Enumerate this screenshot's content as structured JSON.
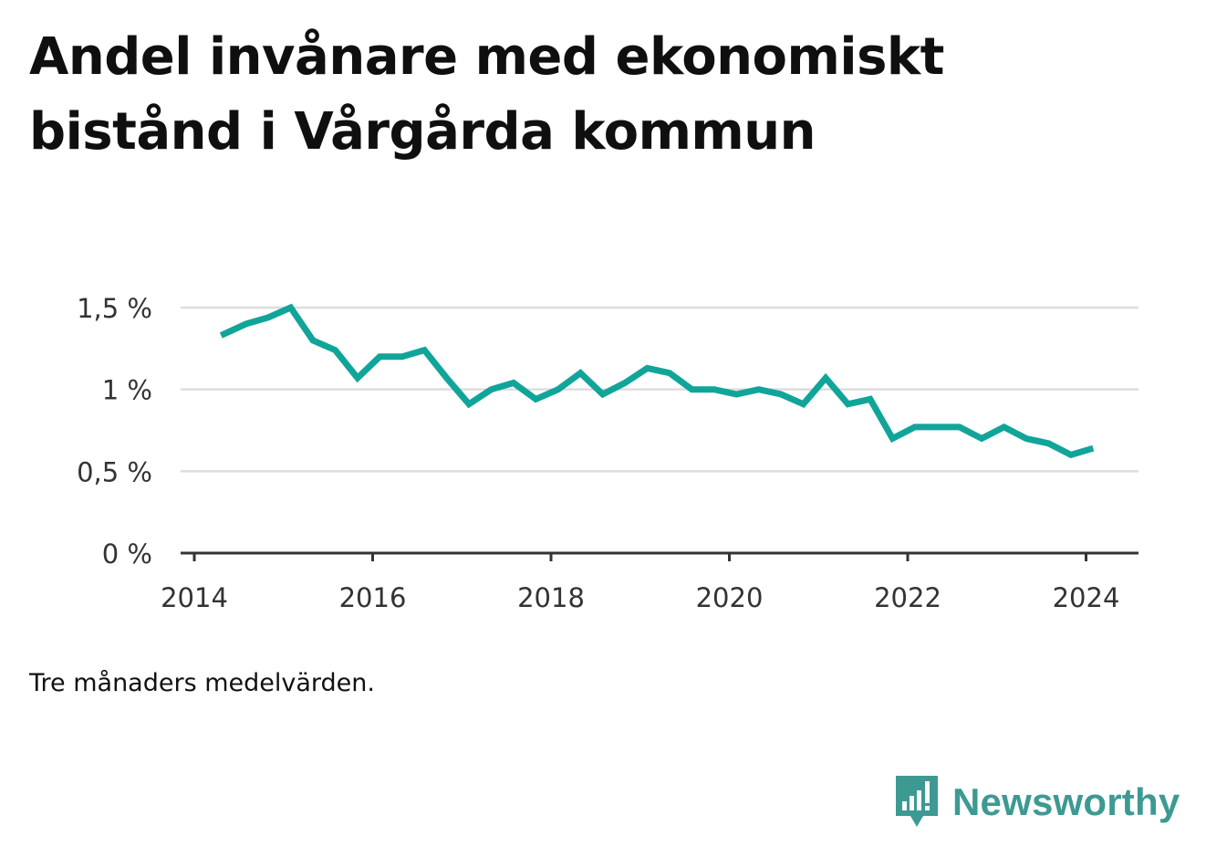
{
  "title": "Andel invånare med ekonomiskt bistånd i Vårgårda kommun",
  "note": "Tre månaders medelvärden.",
  "brand": {
    "name": "Newsworthy",
    "color": "#3d9a93",
    "icon": "newsworthy-logo-icon"
  },
  "colors": {
    "line": "#11a59a",
    "grid": "#dddddd",
    "axis": "#333333"
  },
  "chart_data": {
    "type": "line",
    "title": "Andel invånare med ekonomiskt bistånd i Vårgårda kommun",
    "xlabel": "",
    "ylabel": "",
    "x_range": [
      2014,
      2024.6
    ],
    "ylim": [
      0,
      1.5
    ],
    "y_ticks": [
      0,
      0.5,
      1,
      1.5
    ],
    "y_tick_labels": [
      "0 %",
      "0,5 %",
      "1 %",
      "1,5 %"
    ],
    "x_ticks": [
      2014,
      2016,
      2018,
      2020,
      2022,
      2024
    ],
    "x_tick_labels": [
      "2014",
      "2016",
      "2018",
      "2020",
      "2022",
      "2024"
    ],
    "grid": true,
    "legend": "none",
    "series": [
      {
        "x": [
          2014.3,
          2014.58,
          2014.83,
          2015.08,
          2015.33,
          2015.58,
          2015.83,
          2016.08,
          2016.33,
          2016.58,
          2016.83,
          2017.08,
          2017.33,
          2017.58,
          2017.83,
          2018.08,
          2018.33,
          2018.58,
          2018.83,
          2019.08,
          2019.33,
          2019.58,
          2019.83,
          2020.08,
          2020.33,
          2020.58,
          2020.83,
          2021.08,
          2021.33,
          2021.58,
          2021.83,
          2022.08,
          2022.33,
          2022.58,
          2022.83,
          2023.08,
          2023.33,
          2023.58,
          2023.83,
          2024.08
        ],
        "values": [
          1.33,
          1.4,
          1.44,
          1.5,
          1.3,
          1.24,
          1.07,
          1.2,
          1.2,
          1.24,
          1.07,
          0.91,
          1.0,
          1.04,
          0.94,
          1.0,
          1.1,
          0.97,
          1.04,
          1.13,
          1.1,
          1.0,
          1.0,
          0.97,
          1.0,
          0.97,
          0.91,
          1.07,
          0.91,
          0.94,
          0.7,
          0.77,
          0.77,
          0.77,
          0.7,
          0.77,
          0.7,
          0.67,
          0.6,
          0.64
        ]
      }
    ]
  }
}
